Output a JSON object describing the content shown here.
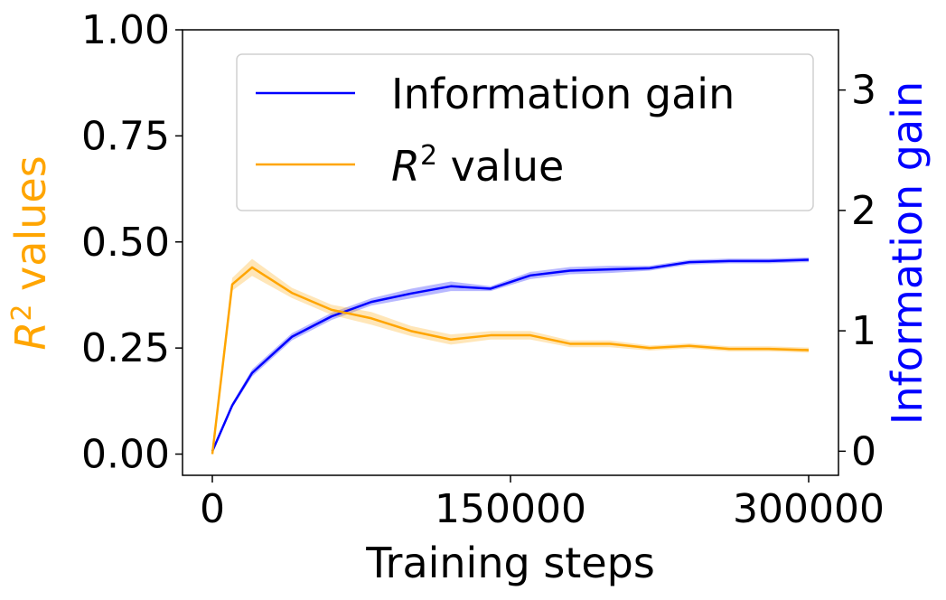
{
  "chart_data": {
    "type": "line",
    "xlabel": "Training steps",
    "ylabel_left": "R² values",
    "ylabel_left_base": "R",
    "ylabel_left_sup": "2",
    "ylabel_left_rest": " values",
    "ylabel_right": "Information gain",
    "xlim": [
      -15000,
      315000
    ],
    "ylim_left": [
      -0.05,
      1.0
    ],
    "ylim_right": [
      -0.2,
      3.5
    ],
    "x_ticks": [
      0,
      150000,
      300000
    ],
    "x_tick_labels": [
      "0",
      "150000",
      "300000"
    ],
    "y_left_ticks": [
      0.0,
      0.25,
      0.5,
      0.75,
      1.0
    ],
    "y_left_tick_labels": [
      "0.00",
      "0.25",
      "0.50",
      "0.75",
      "1.00"
    ],
    "y_right_ticks": [
      0,
      1,
      2,
      3
    ],
    "y_right_tick_labels": [
      "0",
      "1",
      "2",
      "3"
    ],
    "legend_position": "top-right",
    "colors": {
      "information_gain": "#0000ff",
      "r2": "#ffa500",
      "left_axis_label": "#ffa500",
      "right_axis_label": "#0000ff"
    },
    "series": [
      {
        "name": "Information gain",
        "legend_label": "Information gain",
        "axis": "right",
        "x": [
          0,
          10000,
          20000,
          40000,
          60000,
          80000,
          100000,
          120000,
          140000,
          160000,
          180000,
          200000,
          220000,
          240000,
          260000,
          280000,
          300000
        ],
        "y": [
          0.0,
          0.38,
          0.65,
          0.95,
          1.12,
          1.24,
          1.31,
          1.37,
          1.35,
          1.46,
          1.5,
          1.51,
          1.52,
          1.57,
          1.58,
          1.58,
          1.59
        ],
        "band": [
          0.0,
          0.02,
          0.03,
          0.03,
          0.03,
          0.03,
          0.04,
          0.04,
          0.02,
          0.03,
          0.03,
          0.03,
          0.02,
          0.02,
          0.02,
          0.02,
          0.02
        ]
      },
      {
        "name": "R² value",
        "legend_label_base": "R",
        "legend_label_sup": "2",
        "legend_label_rest": " value",
        "axis": "left",
        "x": [
          0,
          10000,
          20000,
          40000,
          60000,
          80000,
          100000,
          120000,
          140000,
          160000,
          180000,
          200000,
          220000,
          240000,
          260000,
          280000,
          300000
        ],
        "y": [
          0.0,
          0.4,
          0.44,
          0.38,
          0.34,
          0.32,
          0.29,
          0.27,
          0.28,
          0.28,
          0.26,
          0.26,
          0.25,
          0.255,
          0.248,
          0.248,
          0.245
        ],
        "band": [
          0.0,
          0.015,
          0.02,
          0.012,
          0.012,
          0.015,
          0.012,
          0.012,
          0.01,
          0.01,
          0.008,
          0.008,
          0.006,
          0.006,
          0.006,
          0.006,
          0.006
        ]
      }
    ]
  }
}
